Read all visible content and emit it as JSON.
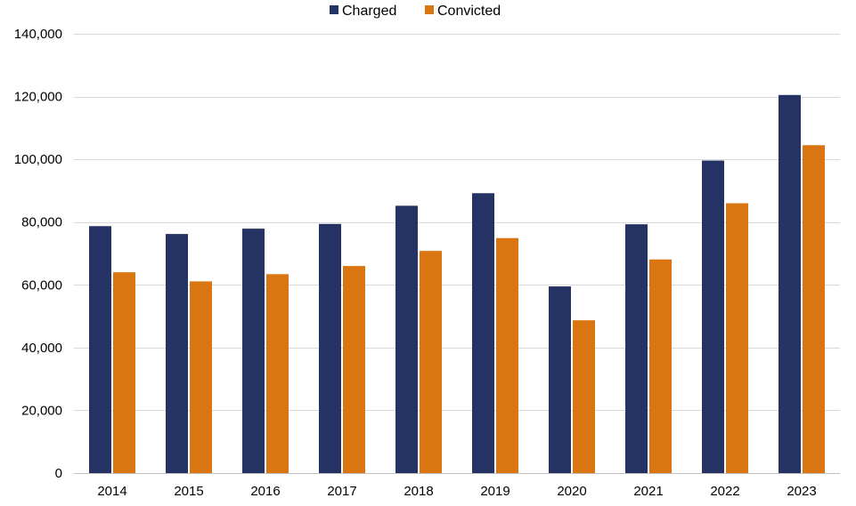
{
  "chart_data": {
    "type": "bar",
    "title": "",
    "xlabel": "",
    "ylabel": "",
    "categories": [
      "2014",
      "2015",
      "2016",
      "2017",
      "2018",
      "2019",
      "2020",
      "2021",
      "2022",
      "2023"
    ],
    "series": [
      {
        "name": "Charged",
        "color": "#253264",
        "values": [
          78700,
          76200,
          77900,
          79400,
          85200,
          89200,
          59500,
          79300,
          99600,
          120500
        ]
      },
      {
        "name": "Convicted",
        "color": "#D97611",
        "values": [
          64000,
          61100,
          63400,
          66000,
          70800,
          74900,
          48700,
          68100,
          86000,
          104500
        ]
      }
    ],
    "ylim": [
      0,
      140000
    ],
    "yticks": [
      0,
      20000,
      40000,
      60000,
      80000,
      100000,
      120000,
      140000
    ],
    "ytick_labels": [
      "0",
      "20,000",
      "40,000",
      "60,000",
      "80,000",
      "100,000",
      "120,000",
      "140,000"
    ],
    "grid": true,
    "legend_position": "top-center"
  }
}
